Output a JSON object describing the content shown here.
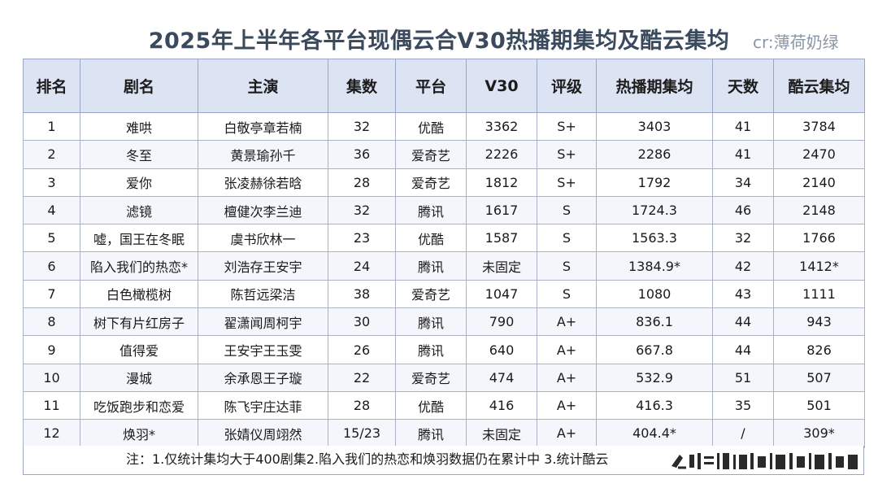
{
  "title": "2025年上半年各平台现偶云合V30热播期集均及酷云集均",
  "credit": "cr:薄荷奶绿",
  "table": {
    "headers": [
      "排名",
      "剧名",
      "主演",
      "集数",
      "平台",
      "V30",
      "评级",
      "热播期集均",
      "天数",
      "酷云集均"
    ],
    "rows": [
      [
        "1",
        "难哄",
        "白敬亭章若楠",
        "32",
        "优酷",
        "3362",
        "S+",
        "3403",
        "41",
        "3784"
      ],
      [
        "2",
        "冬至",
        "黄景瑜孙千",
        "36",
        "爱奇艺",
        "2226",
        "S+",
        "2286",
        "41",
        "2470"
      ],
      [
        "3",
        "爱你",
        "张凌赫徐若晗",
        "28",
        "爱奇艺",
        "1812",
        "S+",
        "1792",
        "34",
        "2140"
      ],
      [
        "4",
        "滤镜",
        "檀健次李兰迪",
        "32",
        "腾讯",
        "1617",
        "S",
        "1724.3",
        "46",
        "2148"
      ],
      [
        "5",
        "嘘，国王在冬眠",
        "虞书欣林一",
        "23",
        "优酷",
        "1587",
        "S",
        "1563.3",
        "32",
        "1766"
      ],
      [
        "6",
        "陷入我们的热恋*",
        "刘浩存王安宇",
        "24",
        "腾讯",
        "未固定",
        "S",
        "1384.9*",
        "42",
        "1412*"
      ],
      [
        "7",
        "白色橄榄树",
        "陈哲远梁洁",
        "38",
        "爱奇艺",
        "1047",
        "S",
        "1080",
        "43",
        "1111"
      ],
      [
        "8",
        "树下有片红房子",
        "翟潇闻周柯宇",
        "30",
        "腾讯",
        "790",
        "A+",
        "836.1",
        "44",
        "943"
      ],
      [
        "9",
        "值得爱",
        "王安宇王玉雯",
        "26",
        "腾讯",
        "640",
        "A+",
        "667.8",
        "44",
        "826"
      ],
      [
        "10",
        "漫城",
        "余承恩王子璇",
        "22",
        "爱奇艺",
        "474",
        "A+",
        "532.9",
        "51",
        "507"
      ],
      [
        "11",
        "吃饭跑步和恋爱",
        "陈飞宇庄达菲",
        "28",
        "优酷",
        "416",
        "A+",
        "416.3",
        "35",
        "501"
      ],
      [
        "12",
        "焕羽*",
        "张婧仪周翊然",
        "15/23",
        "腾讯",
        "未固定",
        "A+",
        "404.4*",
        "/",
        "309*"
      ]
    ]
  },
  "note": "注：1.仅统计集均大于400剧集2.陷入我们的热恋和焕羽数据仍在累计中 3.统计酷云",
  "watermark_icon": "weibo-watermark"
}
